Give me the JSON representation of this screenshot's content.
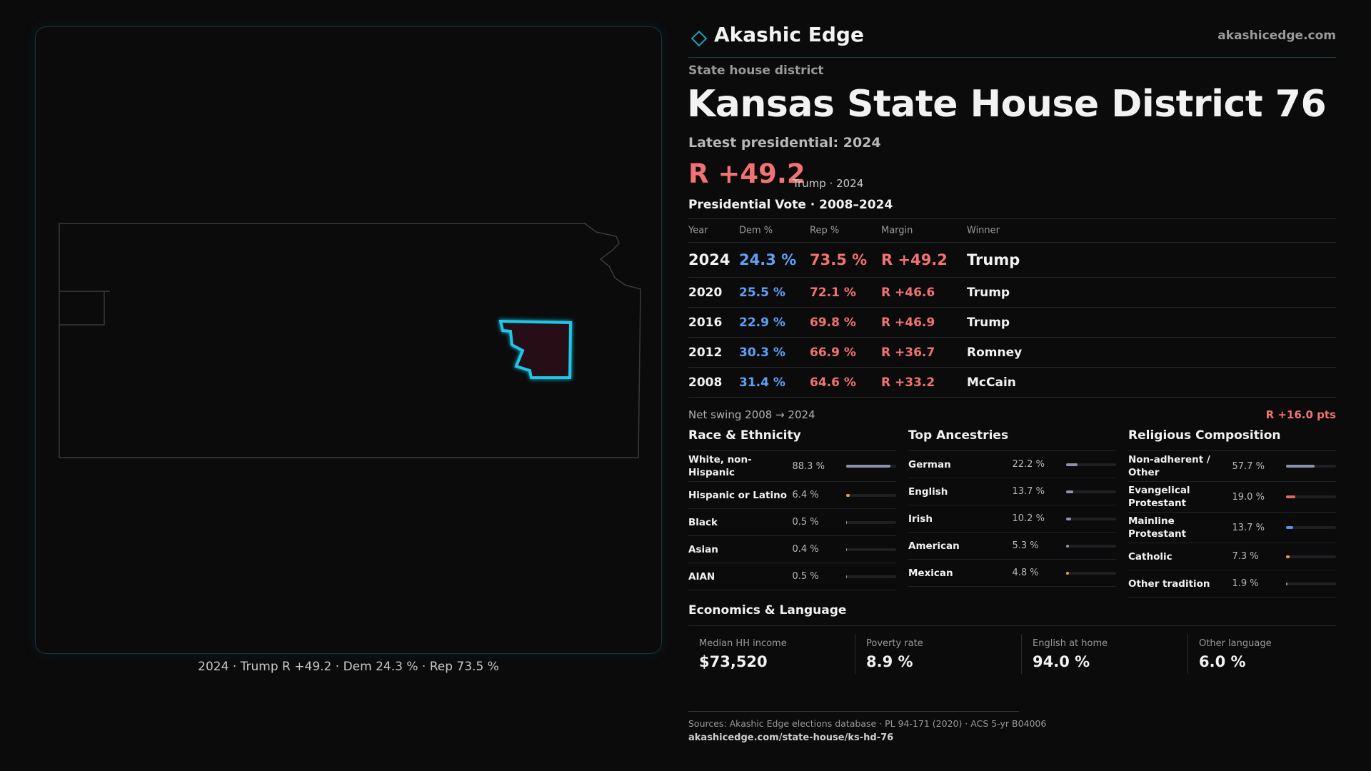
{
  "header": {
    "brand": "Akashic Edge",
    "site": "akashicedge.com"
  },
  "map": {
    "caption": "2024 · Trump R +49.2 · Dem 24.3 % · Rep 73.5 %"
  },
  "summary": {
    "kind": "State house district",
    "title": "Kansas State House District 76",
    "latest": "Latest presidential: 2024",
    "margin": "R +49.2",
    "margin_note": "Trump · 2024"
  },
  "table": {
    "title": "Presidential Vote · 2008–2024",
    "headers": [
      "Year",
      "Dem %",
      "Rep %",
      "Margin",
      "Winner"
    ],
    "rows": [
      [
        "2024",
        "24.3 %",
        "73.5 %",
        "R +49.2",
        "Trump"
      ],
      [
        "2020",
        "25.5 %",
        "72.1 %",
        "R +46.6",
        "Trump"
      ],
      [
        "2016",
        "22.9 %",
        "69.8 %",
        "R +46.9",
        "Trump"
      ],
      [
        "2012",
        "30.3 %",
        "66.9 %",
        "R +36.7",
        "Romney"
      ],
      [
        "2008",
        "31.4 %",
        "64.6 %",
        "R +33.2",
        "McCain"
      ]
    ],
    "swing_label": "Net swing 2008 → 2024",
    "swing_value": "R +16.0 pts"
  },
  "panels": [
    {
      "title": "Race & Ethnicity",
      "rows": [
        {
          "label": "White, non-Hispanic",
          "value": 88.3,
          "value_label": "88.3 %",
          "color": "#8b93a7"
        },
        {
          "label": "Hispanic or Latino",
          "value": 6.4,
          "value_label": "6.4 %",
          "color": "#e8a13a"
        },
        {
          "label": "Black",
          "value": 0.5,
          "value_label": "0.5 %",
          "color": "#8b93a7"
        },
        {
          "label": "Asian",
          "value": 0.4,
          "value_label": "0.4 %",
          "color": "#8b93a7"
        },
        {
          "label": "AIAN",
          "value": 0.5,
          "value_label": "0.5 %",
          "color": "#8b93a7"
        }
      ]
    },
    {
      "title": "Top Ancestries",
      "rows": [
        {
          "label": "German",
          "value": 22.2,
          "value_label": "22.2 %",
          "color": "#8b93a7"
        },
        {
          "label": "English",
          "value": 13.7,
          "value_label": "13.7 %",
          "color": "#8b93a7"
        },
        {
          "label": "Irish",
          "value": 10.2,
          "value_label": "10.2 %",
          "color": "#8b93a7"
        },
        {
          "label": "American",
          "value": 5.3,
          "value_label": "5.3 %",
          "color": "#8b93a7"
        },
        {
          "label": "Mexican",
          "value": 4.8,
          "value_label": "4.8 %",
          "color": "#e8a13a"
        }
      ]
    },
    {
      "title": "Religious Composition",
      "rows": [
        {
          "label": "Non-adherent / Other",
          "value": 57.7,
          "value_label": "57.7 %",
          "color": "#8b93a7"
        },
        {
          "label": "Evangelical Protestant",
          "value": 19.0,
          "value_label": "19.0 %",
          "color": "#e06666"
        },
        {
          "label": "Mainline Protestant",
          "value": 13.7,
          "value_label": "13.7 %",
          "color": "#5b8ee6"
        },
        {
          "label": "Catholic",
          "value": 7.3,
          "value_label": "7.3 %",
          "color": "#e8a13a"
        },
        {
          "label": "Other tradition",
          "value": 1.9,
          "value_label": "1.9 %",
          "color": "#8b93a7"
        }
      ]
    }
  ],
  "economics": {
    "title": "Economics & Language",
    "cards": [
      {
        "label": "Median HH income",
        "value": "$73,520"
      },
      {
        "label": "Poverty rate",
        "value": "8.9 %"
      },
      {
        "label": "English at home",
        "value": "94.0 %"
      },
      {
        "label": "Other language",
        "value": "6.0 %"
      }
    ]
  },
  "footer": {
    "sources": "Sources: Akashic Edge elections database · PL 94-171 (2020) · ACS 5-yr B04006",
    "url": "akashicedge.com/state-house/ks-hd-76"
  }
}
